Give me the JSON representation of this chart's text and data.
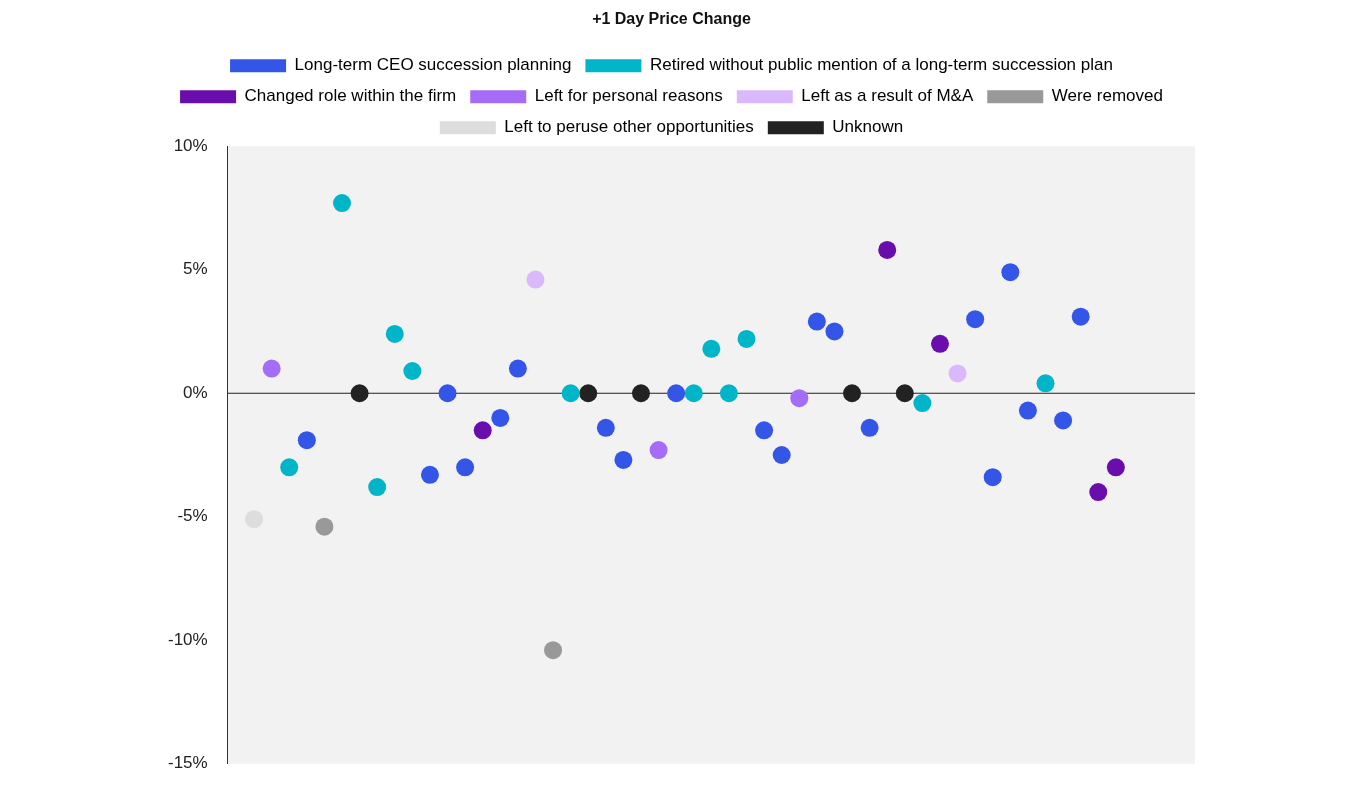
{
  "chart_data": {
    "type": "scatter",
    "title": "+1 Day Price Change",
    "categories": [
      null,
      null,
      null,
      null,
      null,
      null,
      null,
      null,
      null,
      null,
      null,
      null,
      null,
      null,
      null,
      null,
      null,
      null,
      null,
      null,
      null,
      null,
      null,
      null,
      null,
      null,
      null,
      null,
      null,
      null,
      null,
      null,
      null,
      null,
      null,
      null,
      null,
      null,
      null,
      null,
      null,
      null,
      null,
      null,
      null,
      null,
      null,
      null,
      null,
      null,
      null,
      null,
      null,
      null,
      null
    ],
    "series": [
      {
        "name": "Long-term CEO succession planning",
        "color": "#3355e8",
        "values": [
          null,
          null,
          null,
          null,
          -1.9,
          null,
          null,
          null,
          null,
          null,
          null,
          -3.3,
          0,
          -3.0,
          null,
          -1.0,
          1.0,
          null,
          null,
          null,
          null,
          -1.4,
          -2.7,
          null,
          null,
          0,
          null,
          null,
          null,
          null,
          -1.5,
          -2.5,
          null,
          2.9,
          2.5,
          null,
          -1.4,
          null,
          null,
          null,
          null,
          null,
          3.0,
          -3.4,
          4.9,
          -0.7,
          null,
          -1.1,
          3.1,
          null,
          null,
          null,
          null,
          null,
          null
        ]
      },
      {
        "name": "Retired without public mention of a long-term succession plan",
        "color": "#00b5c8",
        "values": [
          null,
          null,
          null,
          -3.0,
          null,
          null,
          7.7,
          null,
          -3.8,
          2.4,
          0.9,
          null,
          null,
          null,
          null,
          null,
          null,
          null,
          null,
          0,
          null,
          null,
          null,
          null,
          null,
          null,
          0,
          1.8,
          0,
          2.2,
          null,
          null,
          null,
          null,
          null,
          null,
          null,
          null,
          null,
          -0.4,
          null,
          null,
          null,
          null,
          null,
          null,
          0.4,
          null,
          null,
          null,
          null,
          null,
          null,
          null,
          null
        ]
      },
      {
        "name": "Changed role within the firm",
        "color": "#6a0dad",
        "values": [
          null,
          null,
          null,
          null,
          null,
          null,
          null,
          null,
          null,
          null,
          null,
          null,
          null,
          null,
          -1.5,
          null,
          null,
          null,
          null,
          null,
          null,
          null,
          null,
          null,
          null,
          null,
          null,
          null,
          null,
          null,
          null,
          null,
          null,
          null,
          null,
          null,
          null,
          5.8,
          null,
          null,
          2.0,
          null,
          null,
          null,
          null,
          null,
          null,
          null,
          null,
          -4.0,
          -3.0,
          null,
          null,
          null,
          null
        ]
      },
      {
        "name": "Left for personal reasons",
        "color": "#a56cf7",
        "values": [
          null,
          null,
          1.0,
          null,
          null,
          null,
          null,
          null,
          null,
          null,
          null,
          null,
          null,
          null,
          null,
          null,
          null,
          null,
          null,
          null,
          null,
          null,
          null,
          null,
          -2.3,
          null,
          null,
          null,
          null,
          null,
          null,
          null,
          -0.2,
          null,
          null,
          null,
          null,
          null,
          null,
          null,
          null,
          null,
          null,
          null,
          null,
          null,
          null,
          null,
          null,
          null,
          null,
          null,
          null,
          null,
          null
        ]
      },
      {
        "name": "Left as a result of M&A",
        "color": "#d9b8fb",
        "values": [
          null,
          null,
          null,
          null,
          null,
          null,
          null,
          null,
          null,
          null,
          null,
          null,
          null,
          null,
          null,
          null,
          null,
          4.6,
          null,
          null,
          null,
          null,
          null,
          null,
          null,
          null,
          null,
          null,
          null,
          null,
          null,
          null,
          null,
          null,
          null,
          null,
          null,
          null,
          null,
          null,
          null,
          0.8,
          null,
          null,
          null,
          null,
          null,
          null,
          null,
          null,
          null,
          null,
          null,
          null,
          null
        ]
      },
      {
        "name": "Were removed",
        "color": "#999999",
        "values": [
          null,
          null,
          null,
          null,
          null,
          -5.4,
          null,
          null,
          null,
          null,
          null,
          null,
          null,
          null,
          null,
          null,
          null,
          null,
          -10.4,
          null,
          null,
          null,
          null,
          null,
          null,
          null,
          null,
          null,
          null,
          null,
          null,
          null,
          null,
          null,
          null,
          null,
          null,
          null,
          null,
          null,
          null,
          null,
          null,
          null,
          null,
          null,
          null,
          null,
          null,
          null,
          null,
          null,
          null,
          null,
          null
        ]
      },
      {
        "name": "Left to peruse other opportunities",
        "color": "#dddddd",
        "values": [
          null,
          -5.1,
          null,
          null,
          null,
          null,
          null,
          null,
          null,
          null,
          null,
          null,
          null,
          null,
          null,
          null,
          null,
          null,
          null,
          null,
          null,
          null,
          null,
          null,
          null,
          null,
          null,
          null,
          null,
          null,
          null,
          null,
          null,
          null,
          null,
          null,
          null,
          null,
          null,
          null,
          null,
          null,
          null,
          null,
          null,
          null,
          null,
          null,
          null,
          null,
          null,
          null,
          null,
          null,
          null
        ]
      },
      {
        "name": "Unknown",
        "color": "#222222",
        "values": [
          null,
          null,
          null,
          null,
          null,
          null,
          null,
          0,
          null,
          null,
          null,
          null,
          null,
          null,
          null,
          null,
          null,
          null,
          null,
          null,
          0,
          null,
          null,
          0,
          null,
          null,
          null,
          null,
          null,
          null,
          null,
          null,
          null,
          null,
          null,
          0,
          null,
          null,
          0,
          null,
          null,
          null,
          null,
          null,
          null,
          null,
          null,
          null,
          null,
          null,
          null,
          null,
          null,
          null,
          null
        ]
      }
    ],
    "ylim": [
      -15,
      10
    ],
    "yticks": [
      {
        "value": -15,
        "label": "-15%"
      },
      {
        "value": -10,
        "label": "-10%"
      },
      {
        "value": -5,
        "label": "-5%"
      },
      {
        "value": 0,
        "label": "0%"
      },
      {
        "value": 5,
        "label": "5%"
      },
      {
        "value": 10,
        "label": "10%"
      }
    ],
    "ref_lines": [
      {
        "axis": "y",
        "value": 0,
        "color": "#222222"
      }
    ],
    "tick_labels": "y",
    "grid": false,
    "legend": "top",
    "marker": "circle"
  }
}
